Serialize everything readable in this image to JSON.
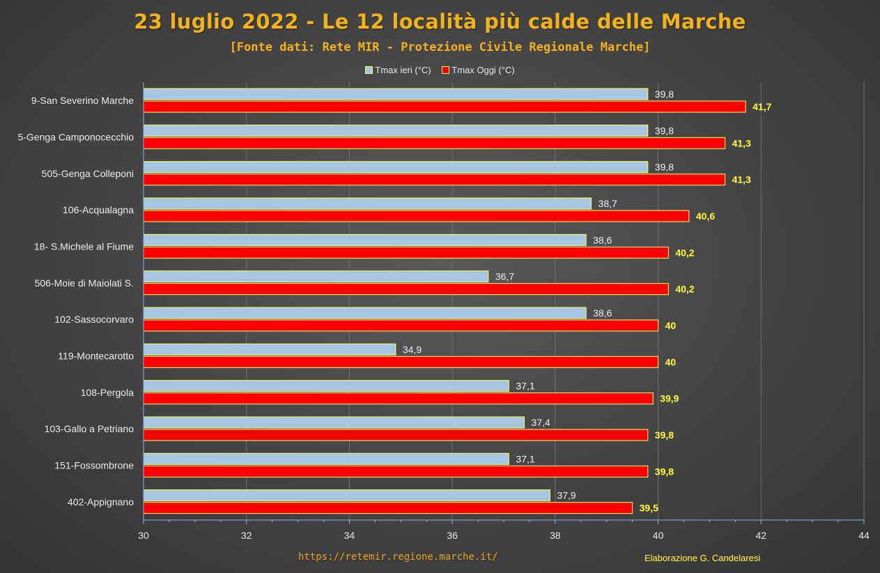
{
  "chart_data": {
    "type": "bar",
    "orientation": "horizontal",
    "title": "23 luglio 2022 - Le 12 località più calde delle Marche",
    "subtitle": "[Fonte dati: Rete MIR - Protezione Civile Regionale Marche]",
    "categories": [
      "9-San Severino Marche",
      "5-Genga Camponocecchio",
      "505-Genga Colleponi",
      "106-Acqualagna",
      "18- S.Michele al Fiume",
      "506-Moie di Maiolati S.",
      "102-Sassocorvaro",
      "119-Montecarotto",
      "108-Pergola",
      "103-Gallo a Petriano",
      "151-Fossombrone",
      "402-Appignano"
    ],
    "series": [
      {
        "name": "Tmax ieri (°C)",
        "color": "#a7c5e0",
        "values": [
          39.8,
          39.8,
          39.8,
          38.7,
          38.6,
          36.7,
          38.6,
          34.9,
          37.1,
          37.4,
          37.1,
          37.9
        ],
        "labels": [
          "39,8",
          "39,8",
          "39,8",
          "38,7",
          "38,6",
          "36,7",
          "38,6",
          "34,9",
          "37,1",
          "37,4",
          "37,1",
          "37,9"
        ],
        "label_color": "#f0f0f0"
      },
      {
        "name": "Tmax Oggi (°C)",
        "color": "#ff0000",
        "values": [
          41.7,
          41.3,
          41.3,
          40.6,
          40.2,
          40.2,
          40,
          40,
          39.9,
          39.8,
          39.8,
          39.5
        ],
        "labels": [
          "41,7",
          "41,3",
          "41,3",
          "40,6",
          "40,2",
          "40,2",
          "40",
          "40",
          "39,9",
          "39,8",
          "39,8",
          "39,5"
        ],
        "label_color": "#ffff33"
      }
    ],
    "xlim": [
      30,
      44
    ],
    "xticks": [
      "30",
      "32",
      "34",
      "36",
      "38",
      "40",
      "42",
      "44"
    ],
    "xtick_values": [
      30,
      32,
      34,
      36,
      38,
      40,
      42,
      44
    ],
    "grid": true,
    "legend": "top-center"
  },
  "footer": {
    "source_link": "https://retemir.regione.marche.it/",
    "credit": "Elaborazione G. Candelaresi"
  }
}
